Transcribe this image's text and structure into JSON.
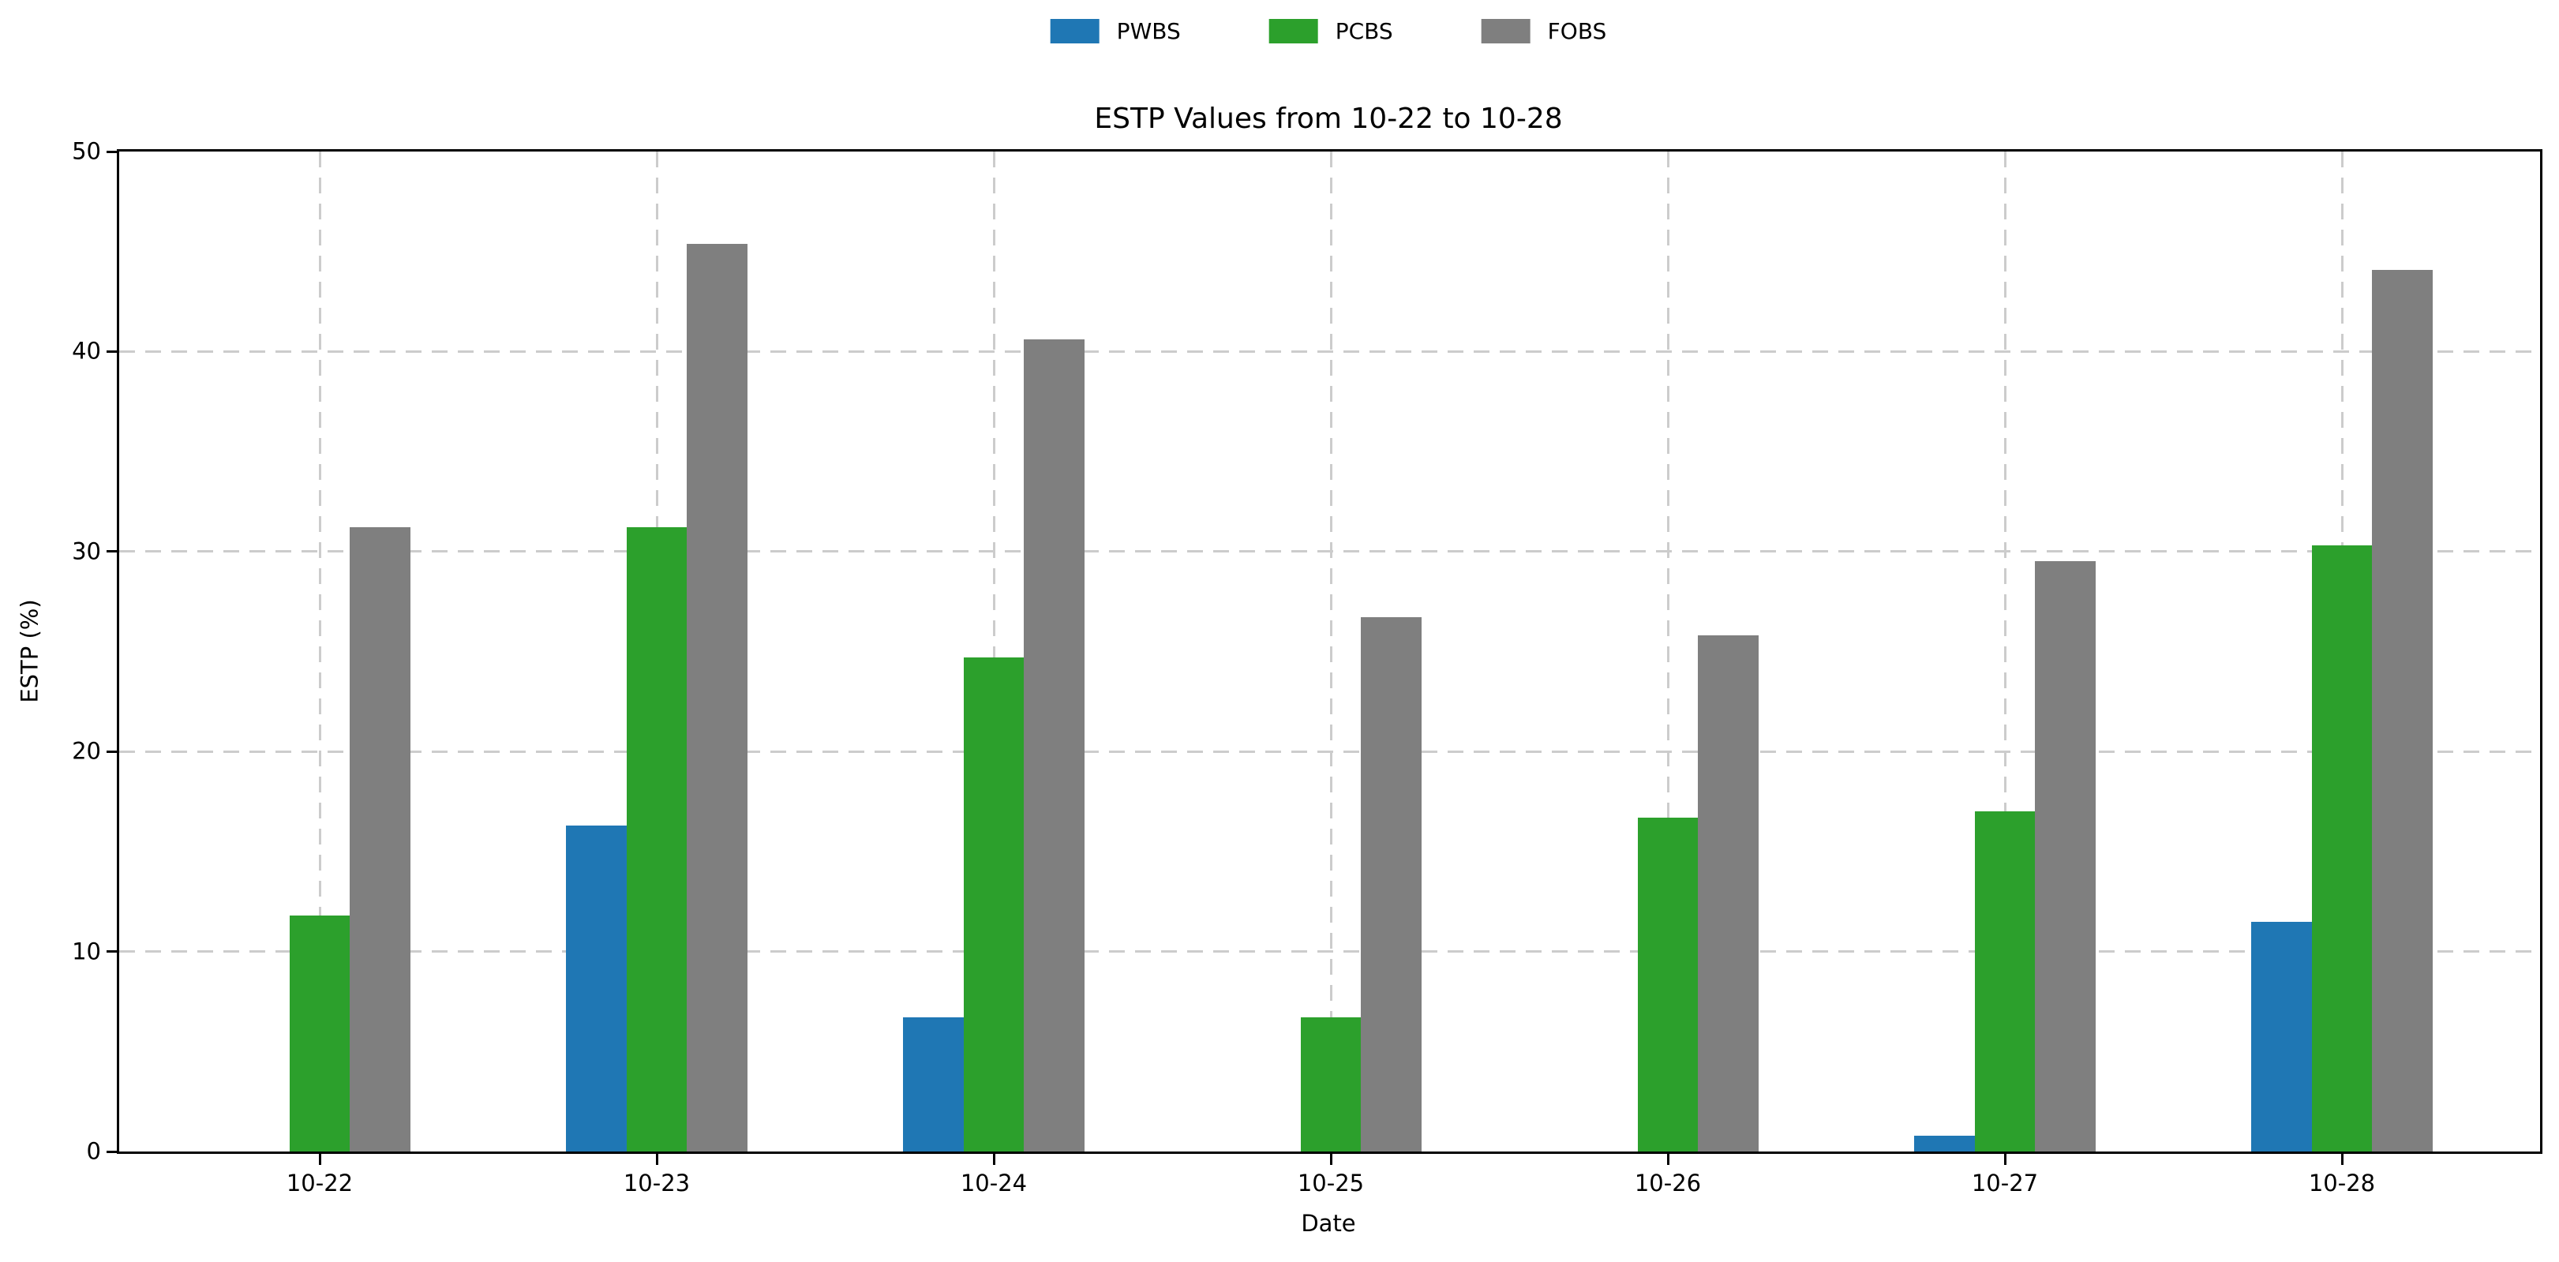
{
  "chart_data": {
    "type": "bar",
    "title": "ESTP Values from 10-22 to 10-28",
    "xlabel": "Date",
    "ylabel": "ESTP (%)",
    "categories": [
      "10-22",
      "10-23",
      "10-24",
      "10-25",
      "10-26",
      "10-27",
      "10-28"
    ],
    "series": [
      {
        "name": "PWBS",
        "color": "#1f77b4",
        "values": [
          0,
          16.3,
          6.7,
          0,
          0,
          0.8,
          11.5
        ]
      },
      {
        "name": "PCBS",
        "color": "#2ca02c",
        "values": [
          11.8,
          31.2,
          24.7,
          6.7,
          16.7,
          17.0,
          30.3
        ]
      },
      {
        "name": "FOBS",
        "color": "#7f7f7f",
        "values": [
          31.2,
          45.4,
          40.6,
          26.7,
          25.8,
          29.5,
          44.1
        ]
      }
    ],
    "ylim": [
      0,
      50
    ],
    "y_ticks": [
      0,
      10,
      20,
      30,
      40,
      50
    ],
    "grid": true,
    "grid_style": "dashed",
    "legend_position": "top-center",
    "colors": {
      "grid": "#cccccc",
      "spine": "#000000",
      "text": "#000000",
      "background": "#ffffff"
    }
  }
}
